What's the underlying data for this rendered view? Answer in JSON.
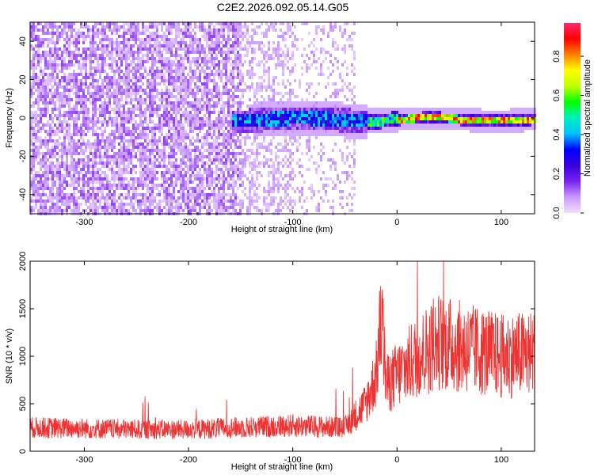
{
  "title": "C2E2.2026.092.05.14.G05",
  "chart_data": [
    {
      "type": "heatmap",
      "xlabel": "Height of straight line (km)",
      "ylabel": "Frequency (Hz)",
      "xlim": [
        -352,
        132
      ],
      "ylim": [
        -50,
        50
      ],
      "xticks": [
        "-300",
        "-200",
        "-100",
        "0",
        "100"
      ],
      "yticks": [
        "-40",
        "-20",
        "0",
        "20",
        "40"
      ],
      "xtick_values": [
        -300,
        -200,
        -100,
        0,
        100
      ],
      "ytick_values": [
        -40,
        -20,
        0,
        20,
        40
      ],
      "colorbar": {
        "label": "Normalized spectral amplitude",
        "range": [
          0,
          0.97
        ],
        "ticks": [
          "0.0",
          "0.2",
          "0.4",
          "0.6",
          "0.8"
        ],
        "tick_values": [
          0,
          0.2,
          0.4,
          0.6,
          0.8
        ],
        "colormap": [
          "#f0e0ff",
          "#c99aff",
          "#7a22ee",
          "#3a00dd",
          "#0000ff",
          "#00c0ff",
          "#00f0c0",
          "#00ff00",
          "#c0ff00",
          "#ffff00",
          "#ff8000",
          "#ff0000",
          "#ff2a6d"
        ]
      },
      "features": [
        {
          "name": "noise",
          "x_range": [
            -352,
            -40
          ],
          "frequency_range": [
            -50,
            50
          ],
          "amplitude": 0.05
        },
        {
          "name": "signal",
          "x_range": [
            -160,
            132
          ],
          "frequency_center": 0,
          "amplitude_range": [
            0.3,
            0.9
          ]
        }
      ]
    },
    {
      "type": "line",
      "xlabel": "Height of straight line (km)",
      "ylabel": "SNR (10 * v/v)",
      "xlim": [
        -352,
        132
      ],
      "ylim": [
        0,
        2000
      ],
      "xticks": [
        "-300",
        "-200",
        "-100",
        "0",
        "100"
      ],
      "yticks": [
        "0",
        "500",
        "1000",
        "1500",
        "2000"
      ],
      "xtick_values": [
        -300,
        -200,
        -100,
        0,
        100
      ],
      "ytick_values": [
        0,
        500,
        1000,
        1500,
        2000
      ],
      "color": "#ee3333",
      "x": [
        -352,
        -300,
        -250,
        -200,
        -150,
        -100,
        -50,
        -30,
        -20,
        -15,
        -10,
        0,
        20,
        40,
        60,
        80,
        100,
        132
      ],
      "y": [
        250,
        240,
        230,
        230,
        250,
        270,
        250,
        500,
        800,
        1400,
        700,
        800,
        1000,
        1150,
        1100,
        1050,
        1000,
        1030
      ]
    }
  ]
}
